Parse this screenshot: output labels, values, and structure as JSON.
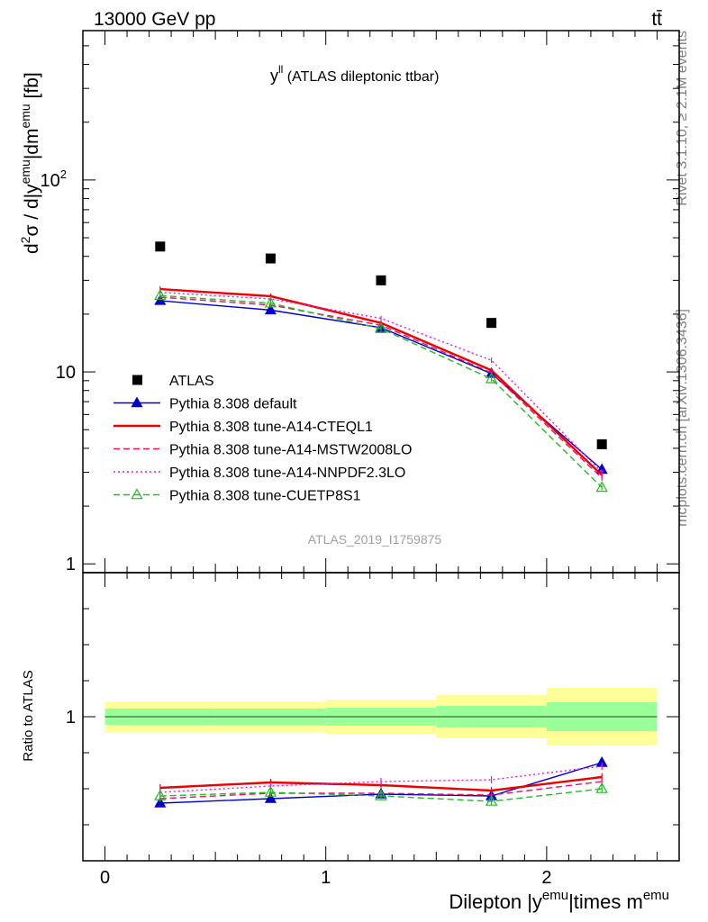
{
  "header": {
    "left": "13000 GeV pp",
    "right": "tt̄"
  },
  "side_labels": {
    "rivet": "Rivet 3.1.10, ≥ 2.1M events",
    "mcplots": "mcplots.cern.ch [arXiv:1306.3436]"
  },
  "watermark": "ATLAS_2019_I1759875",
  "chart_data": [
    {
      "type": "scatter",
      "title": {
        "main": "y",
        "sup": "ll",
        "rest": " (ATLAS dileptonic ttbar)"
      },
      "ylabel": {
        "d": "d",
        "sup2": "2",
        "sigma": "σ / d|y",
        "sup_emu1": "emu",
        "mid": "|dm",
        "sup_emu2": "emu",
        "unit": " [fb]"
      },
      "yscale": "log",
      "ylim": [
        0.9,
        600
      ],
      "xlim": [
        -0.1,
        2.6
      ],
      "y_ticks": [
        {
          "v": 1,
          "label": "1"
        },
        {
          "v": 10,
          "label": "10"
        },
        {
          "v": 100,
          "label": "10",
          "sup": "2"
        }
      ],
      "x": [
        0.25,
        0.75,
        1.25,
        1.75,
        2.25
      ],
      "x_err": 0.25,
      "data": {
        "name": "ATLAS",
        "y": [
          45,
          39,
          30,
          18,
          4.2
        ]
      },
      "series": [
        {
          "name": "Pythia 8.308 default",
          "color": "#0000cc",
          "style": "solid",
          "marker": "triangle-filled",
          "y": [
            23.5,
            21.0,
            17.0,
            9.8,
            3.1
          ]
        },
        {
          "name": "Pythia 8.308 tune-A14-CTEQL1",
          "color": "#ee0000",
          "style": "solid",
          "marker": "none",
          "y": [
            27.0,
            24.8,
            18.0,
            10.2,
            2.9
          ]
        },
        {
          "name": "Pythia 8.308 tune-A14-MSTW2008LO",
          "color": "#ee1166",
          "style": "dashed",
          "marker": "none",
          "y": [
            24.5,
            22.3,
            17.5,
            9.9,
            2.8
          ]
        },
        {
          "name": "Pythia 8.308 tune-A14-NNPDF2.3LO",
          "color": "#ee11ee",
          "style": "dotted",
          "marker": "none",
          "y": [
            26.0,
            24.0,
            19.0,
            11.5,
            3.0
          ]
        },
        {
          "name": "Pythia 8.308 tune-CUETP8S1",
          "color": "#22bb22",
          "style": "dashed",
          "marker": "triangle-open",
          "y": [
            25.0,
            22.8,
            16.8,
            9.2,
            2.5
          ]
        }
      ],
      "legend": "center-left"
    },
    {
      "type": "scatter",
      "ylabel": "Ratio to ATLAS",
      "ylim": [
        0.2,
        1.8
      ],
      "y_ticks": [
        {
          "v": 1,
          "label": "1"
        }
      ],
      "x_ticks": [
        {
          "v": 0,
          "label": "0"
        },
        {
          "v": 1,
          "label": "1"
        },
        {
          "v": 2,
          "label": "2"
        }
      ],
      "xlabel": {
        "pre": "Dilepton |y",
        "sup1": "emu",
        "mid": "|times m",
        "sup2": "emu"
      },
      "bands": [
        {
          "x": [
            0.0,
            0.5
          ],
          "green": [
            0.955,
            1.045
          ],
          "yellow": [
            0.915,
            1.085
          ]
        },
        {
          "x": [
            0.5,
            1.0
          ],
          "green": [
            0.955,
            1.045
          ],
          "yellow": [
            0.915,
            1.085
          ]
        },
        {
          "x": [
            1.0,
            1.5
          ],
          "green": [
            0.95,
            1.05
          ],
          "yellow": [
            0.905,
            1.095
          ]
        },
        {
          "x": [
            1.5,
            2.0
          ],
          "green": [
            0.94,
            1.06
          ],
          "yellow": [
            0.88,
            1.12
          ]
        },
        {
          "x": [
            2.0,
            2.5
          ],
          "green": [
            0.92,
            1.08
          ],
          "yellow": [
            0.84,
            1.16
          ]
        }
      ],
      "series": [
        {
          "name": "Pythia 8.308 default",
          "y": [
            0.52,
            0.545,
            0.57,
            0.56,
            0.745
          ]
        },
        {
          "name": "Pythia 8.308 tune-A14-CTEQL1",
          "y": [
            0.605,
            0.635,
            0.62,
            0.59,
            0.665
          ]
        },
        {
          "name": "Pythia 8.308 tune-A14-MSTW2008LO",
          "y": [
            0.545,
            0.575,
            0.575,
            0.565,
            0.64
          ]
        },
        {
          "name": "Pythia 8.308 tune-A14-NNPDF2.3LO",
          "y": [
            0.58,
            0.615,
            0.64,
            0.65,
            0.725
          ]
        },
        {
          "name": "Pythia 8.308 tune-CUETP8S1",
          "y": [
            0.56,
            0.58,
            0.56,
            0.53,
            0.6
          ]
        }
      ]
    }
  ]
}
